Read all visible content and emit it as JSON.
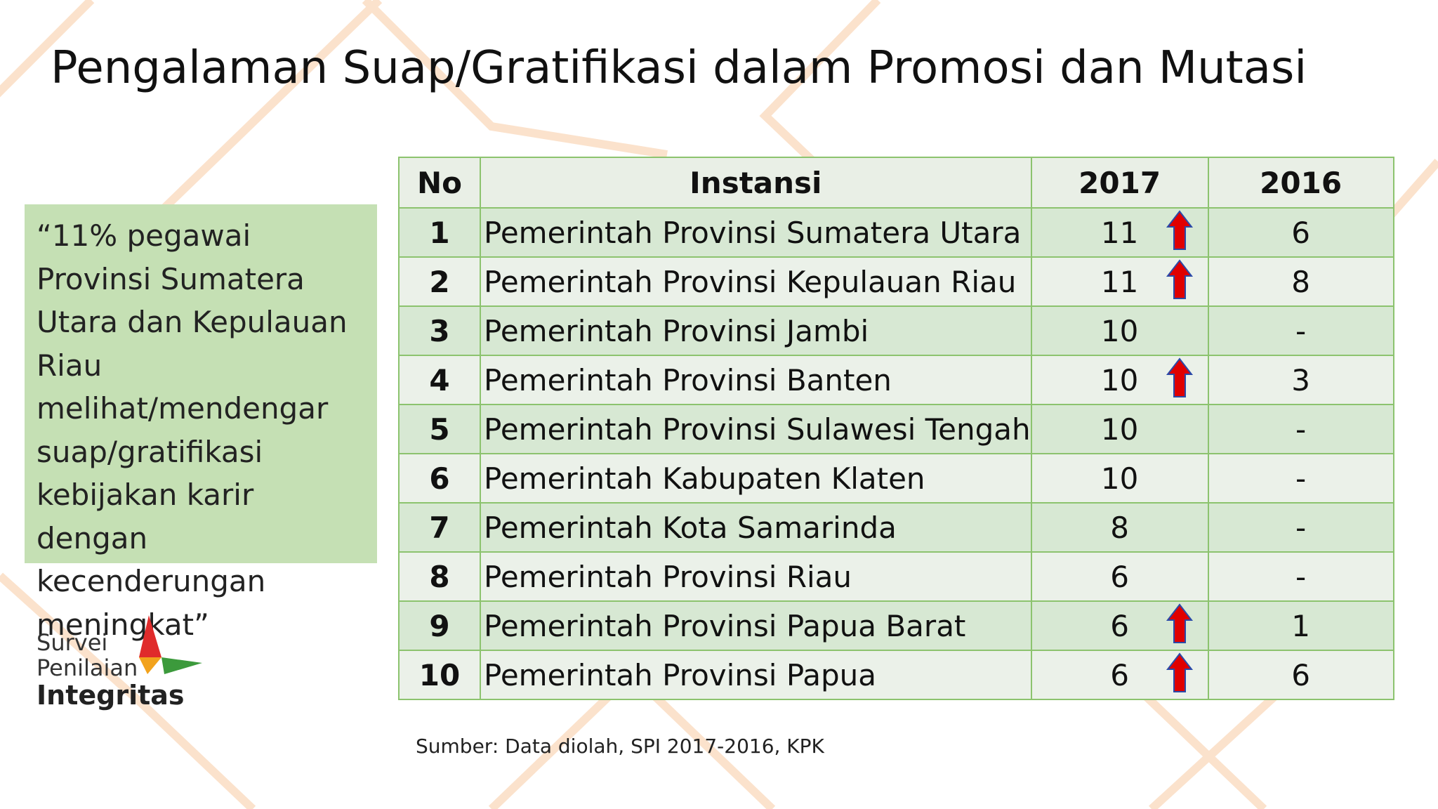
{
  "title": "Pengalaman Suap/Gratifikasi dalam Promosi dan Mutasi",
  "quote": "“11% pegawai Provinsi Sumatera Utara dan Kepulauan Riau melihat/mendengar suap/gratifikasi kebijakan karir dengan kecenderungan meningkat”",
  "logo": {
    "line1": "Survei",
    "line2": "Penilaian",
    "line3": "Integritas"
  },
  "table": {
    "header": [
      "No",
      "Instansi",
      "2017",
      "2016"
    ],
    "rows": [
      [
        1,
        "Pemerintah Provinsi Sumatera Utara",
        11,
        6
      ],
      [
        2,
        "Pemerintah Provinsi Kepulauan Riau",
        11,
        8
      ],
      [
        3,
        "Pemerintah Provinsi Jambi",
        10,
        "-"
      ],
      [
        4,
        "Pemerintah Provinsi Banten",
        10,
        3
      ],
      [
        5,
        "Pemerintah Provinsi Sulawesi Tengah",
        10,
        "-"
      ],
      [
        6,
        "Pemerintah Kabupaten Klaten",
        10,
        "-"
      ],
      [
        7,
        "Pemerintah Kota Samarinda",
        8,
        "-"
      ],
      [
        8,
        "Pemerintah Provinsi Riau",
        6,
        "-"
      ],
      [
        9,
        "Pemerintah Provinsi Papua Barat",
        6,
        1
      ],
      [
        10,
        "Pemerintah Provinsi Papua",
        6,
        6
      ]
    ]
  },
  "source": "Sumber: Data diolah, SPI 2017-2016, KPK"
}
